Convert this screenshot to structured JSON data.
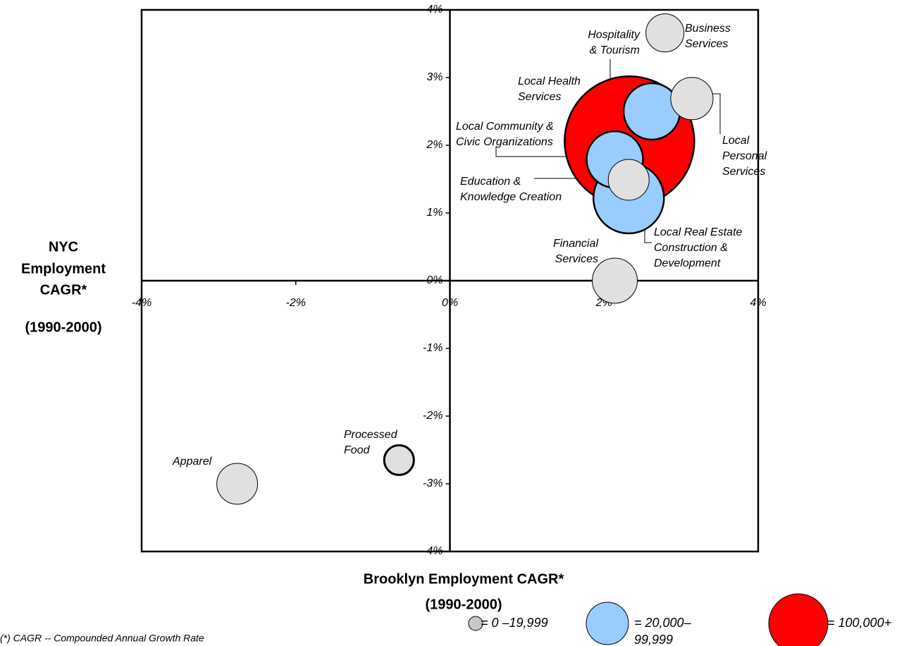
{
  "chart_data": {
    "type": "bubble",
    "x_label": [
      "Brooklyn Employment  CAGR*",
      "(1990-2000)"
    ],
    "y_label": [
      "NYC",
      "Employment",
      "CAGR*",
      "(1990-2000)"
    ],
    "footnote": "(*) CAGR -- Compounded Annual Growth Rate",
    "xlim": [
      -4,
      4
    ],
    "ylim": [
      -4,
      4
    ],
    "xticks": [
      {
        "value": -4,
        "label": "-4%"
      },
      {
        "value": -2,
        "label": "-2%"
      },
      {
        "value": 0,
        "label": "0%"
      },
      {
        "value": 2,
        "label": "2%"
      },
      {
        "value": 4,
        "label": "4%"
      }
    ],
    "yticks": [
      {
        "value": -4,
        "label": "-4%"
      },
      {
        "value": -3,
        "label": "-3%"
      },
      {
        "value": -2,
        "label": "-2%"
      },
      {
        "value": -1,
        "label": "-1%"
      },
      {
        "value": 0,
        "label": "0%"
      },
      {
        "value": 1,
        "label": "1%"
      },
      {
        "value": 2,
        "label": "2%"
      },
      {
        "value": 3,
        "label": "3%"
      },
      {
        "value": 4,
        "label": "4%"
      }
    ],
    "points": [
      {
        "label": [
          "Local Health",
          "Services"
        ],
        "x": 2.33,
        "y": 2.06,
        "size": 120000,
        "color": "#ff0000"
      },
      {
        "label": [
          "Local Real Estate",
          "Construction &",
          "Development"
        ],
        "x": 2.32,
        "y": 1.22,
        "size": 35500,
        "color": "#99ccff"
      },
      {
        "label": [
          "Local Community &",
          "Civic Organizations"
        ],
        "x": 2.14,
        "y": 1.79,
        "size": 22700,
        "color": "#99ccff"
      },
      {
        "label": [
          "Hospitality",
          "& Tourism"
        ],
        "x": 2.62,
        "y": 2.5,
        "size": 22700,
        "color": "#99ccff"
      },
      {
        "label": [
          "Education &",
          "Knowledge Creation"
        ],
        "x": 2.32,
        "y": 1.49,
        "size": 11900,
        "color": "#e0e0e0"
      },
      {
        "label": [
          "Business",
          "Services"
        ],
        "x": 2.79,
        "y": 3.66,
        "size": 10350,
        "color": "#e0e0e0"
      },
      {
        "label": [
          "Local",
          "Personal",
          "Services"
        ],
        "x": 3.14,
        "y": 2.69,
        "size": 12800,
        "color": "#e0e0e0"
      },
      {
        "label": [
          "Financial",
          "Services"
        ],
        "x": 2.14,
        "y": 0,
        "size": 14500,
        "color": "#e0e0e0"
      },
      {
        "label": [
          "Processed",
          "Food"
        ],
        "x": -0.66,
        "y": -2.65,
        "size": 6260,
        "color": "#e0e0e0"
      },
      {
        "label": [
          "Apparel"
        ],
        "x": -2.76,
        "y": -3.0,
        "size": 11900,
        "color": "#e0e0e0"
      }
    ],
    "legend": [
      {
        "label": [
          "= 0 –19,999"
        ],
        "color": "#c8c8c8"
      },
      {
        "label": [
          "= 20,000–",
          "99,999"
        ],
        "color": "#99ccff"
      },
      {
        "label": [
          "= 100,000+"
        ],
        "color": "#ff0000"
      }
    ]
  }
}
